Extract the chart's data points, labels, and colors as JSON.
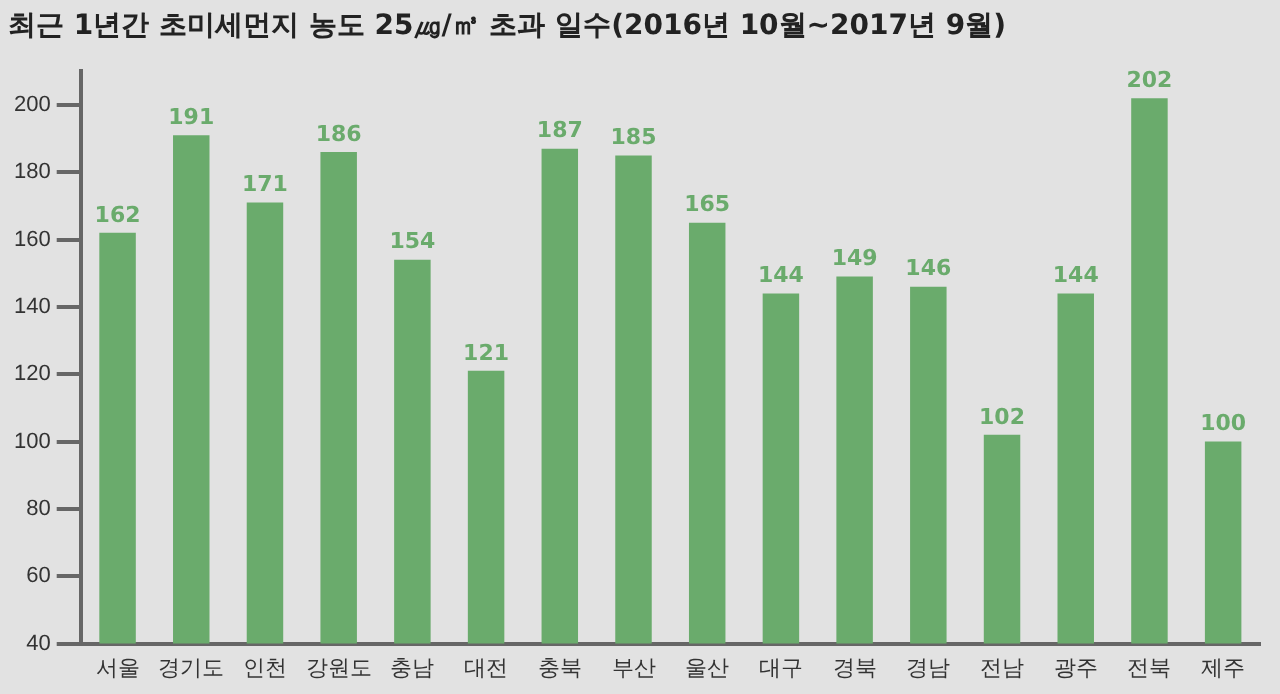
{
  "chart_data": {
    "type": "bar",
    "title": "최근 1년간 초미세먼지 농도 25㎍/㎥ 초과 일수(2016년 10월~2017년 9월)",
    "categories": [
      "서울",
      "경기도",
      "인천",
      "강원도",
      "충남",
      "대전",
      "충북",
      "부산",
      "울산",
      "대구",
      "경북",
      "경남",
      "전남",
      "광주",
      "전북",
      "제주"
    ],
    "values": [
      162,
      191,
      171,
      186,
      154,
      121,
      187,
      185,
      165,
      144,
      149,
      146,
      102,
      144,
      202,
      100
    ],
    "color": "#6aab6c",
    "ylim": [
      40,
      210
    ],
    "yticks": [
      40,
      60,
      80,
      100,
      120,
      140,
      160,
      180,
      200
    ],
    "grid": false,
    "legend": false,
    "data_labels": true
  }
}
